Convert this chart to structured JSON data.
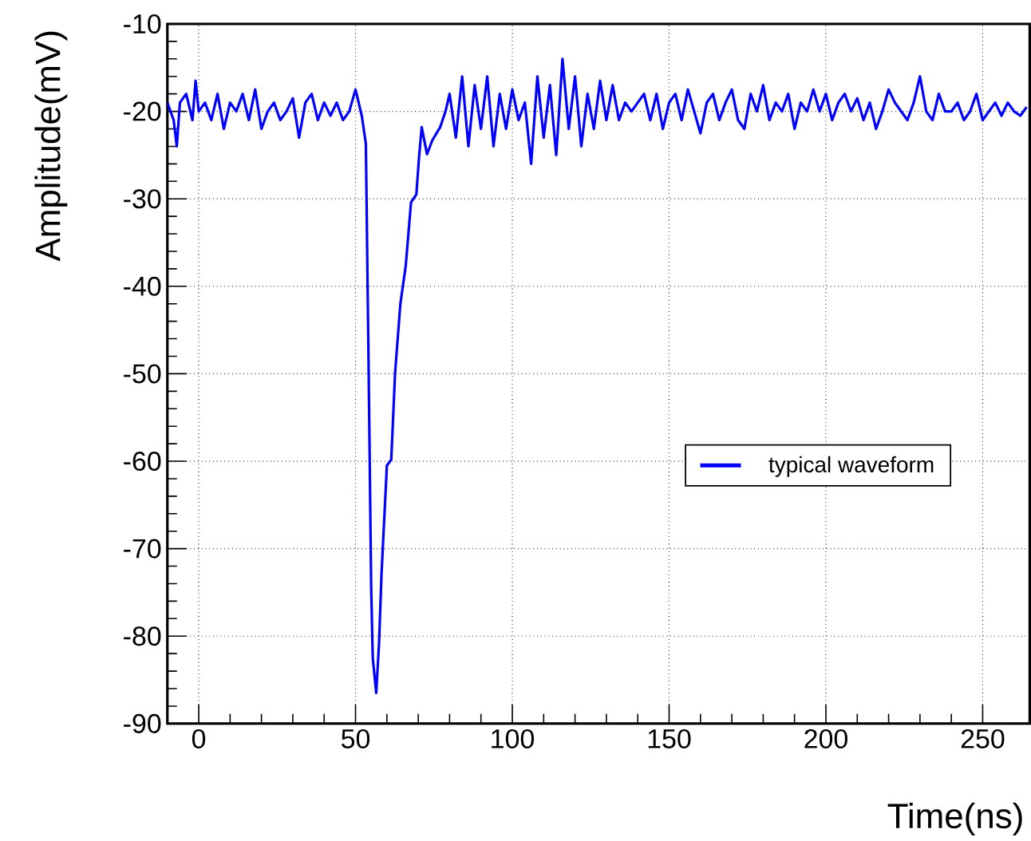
{
  "chart_data": {
    "type": "line",
    "xlabel": "Time(ns)",
    "ylabel": "Amplitude(mV)",
    "xlim": [
      -10,
      265
    ],
    "ylim": [
      -90,
      -10
    ],
    "xticks": [
      0,
      50,
      100,
      150,
      200,
      250
    ],
    "yticks": [
      -90,
      -80,
      -70,
      -60,
      -50,
      -40,
      -30,
      -20,
      -10
    ],
    "grid": true,
    "legend": "right",
    "marker": "none",
    "line_style": "solid",
    "series": [
      {
        "name": "typical waveform",
        "color": "#0000ff",
        "x": [
          -10,
          -8,
          -7,
          -6,
          -4,
          -2,
          -1,
          0,
          2,
          4,
          6,
          8,
          10,
          12,
          14,
          16,
          18,
          20,
          22,
          24,
          26,
          28,
          30,
          32,
          34,
          36,
          38,
          40,
          42,
          44,
          46,
          48,
          50,
          52,
          53.3,
          54.2,
          55,
          55.5,
          56.6,
          57.5,
          58.3,
          60,
          61.4,
          62.6,
          64.3,
          66,
          67.7,
          69.4,
          70.2,
          71.1,
          72.8,
          74.5,
          77,
          78.7,
          80,
          82,
          84,
          86,
          88,
          90,
          92,
          94,
          96,
          98,
          100,
          102,
          104,
          106,
          108,
          110,
          112,
          114,
          116,
          118,
          120,
          122,
          124,
          126,
          128,
          130,
          132,
          134,
          136,
          138,
          140,
          142,
          144,
          146,
          148,
          150,
          152,
          154,
          156,
          158,
          160,
          162,
          164,
          166,
          168,
          170,
          172,
          174,
          176,
          178,
          180,
          182,
          184,
          186,
          188,
          190,
          192,
          194,
          196,
          198,
          200,
          202,
          204,
          206,
          208,
          210,
          212,
          214,
          216,
          218,
          220,
          222,
          224,
          226,
          228,
          230,
          232,
          234,
          236,
          238,
          240,
          242,
          244,
          246,
          248,
          250,
          252,
          254,
          256,
          258,
          260,
          262,
          264
        ],
        "values": [
          -19,
          -21,
          -24,
          -19,
          -18,
          -21,
          -16.5,
          -20,
          -19,
          -21,
          -18,
          -22,
          -19,
          -20,
          -18,
          -21,
          -17.5,
          -22,
          -20,
          -19,
          -21,
          -20,
          -18.5,
          -23,
          -19,
          -18,
          -21,
          -19,
          -20.5,
          -19,
          -21,
          -20,
          -17.5,
          -20.5,
          -23.7,
          -50,
          -74.6,
          -82.5,
          -86.5,
          -80.8,
          -72.8,
          -60.5,
          -59.8,
          -50,
          -42,
          -37.7,
          -30.4,
          -29.5,
          -25.5,
          -21.8,
          -24.9,
          -23.3,
          -21.8,
          -20,
          -18,
          -23,
          -16,
          -24,
          -17,
          -22,
          -16,
          -24,
          -18,
          -22,
          -17.5,
          -21,
          -19,
          -26,
          -16,
          -23,
          -17,
          -25,
          -14,
          -22,
          -16,
          -24,
          -18,
          -22,
          -16.5,
          -21,
          -17,
          -21,
          -19,
          -20,
          -19,
          -18,
          -21,
          -18,
          -22,
          -19,
          -18,
          -21,
          -17.5,
          -20,
          -22.5,
          -19,
          -18,
          -21,
          -19,
          -17.5,
          -21,
          -22,
          -18,
          -20,
          -17,
          -21,
          -19,
          -20,
          -18,
          -22,
          -19,
          -20,
          -17.5,
          -20,
          -18,
          -21,
          -19,
          -18,
          -20,
          -18.5,
          -21,
          -19,
          -22,
          -20,
          -17.5,
          -19,
          -20,
          -21,
          -19,
          -16,
          -20,
          -21,
          -18,
          -20,
          -20,
          -19,
          -21,
          -20,
          -18,
          -21,
          -20,
          -19,
          -20.5,
          -19,
          -20,
          -20.5,
          -19.5
        ]
      }
    ]
  }
}
